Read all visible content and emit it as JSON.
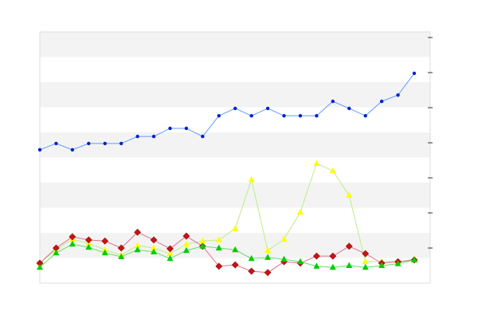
{
  "chart_data": {
    "type": "line",
    "categories": [
      null,
      null,
      null,
      null,
      null,
      null,
      null,
      null,
      null,
      null,
      null,
      null,
      null,
      null,
      null,
      null,
      null,
      null,
      null,
      null,
      null,
      null,
      null,
      null
    ],
    "ylim": [
      0,
      71.6
    ],
    "yticks": [
      10,
      20,
      30,
      40,
      50,
      60,
      70
    ],
    "grid": true,
    "series": [
      {
        "color": "#0022cc",
        "line_color": "#6699ff",
        "marker": "circle",
        "values": [
          38.0,
          39.8,
          38.0,
          39.8,
          39.8,
          39.8,
          41.8,
          41.8,
          44.1,
          44.1,
          41.8,
          47.7,
          49.8,
          47.7,
          49.8,
          47.7,
          47.7,
          47.7,
          51.8,
          49.8,
          47.7,
          51.8,
          53.6,
          59.8
        ]
      },
      {
        "color": "#ffff00",
        "line_color": "#bbee88",
        "marker": "triangle",
        "values": [
          5.7,
          9.5,
          12.5,
          11.4,
          9.5,
          8.0,
          10.7,
          10.0,
          8.4,
          11.1,
          12.0,
          12.3,
          15.5,
          29.5,
          9.3,
          12.5,
          20.2,
          34.1,
          32.0,
          25.0,
          6.1,
          6.1,
          6.1,
          6.8
        ]
      },
      {
        "color": "#cc1111",
        "line_color": "#e07090",
        "marker": "diamond",
        "values": [
          5.7,
          10.0,
          13.2,
          12.3,
          12.0,
          10.0,
          14.5,
          12.3,
          9.8,
          13.4,
          10.5,
          4.8,
          5.2,
          3.4,
          3.0,
          6.1,
          5.7,
          7.7,
          7.7,
          10.5,
          8.4,
          5.7,
          6.1,
          6.6
        ]
      },
      {
        "color": "#00cc00",
        "line_color": "#66dd66",
        "marker": "triangle",
        "values": [
          4.5,
          8.6,
          11.1,
          10.2,
          8.6,
          7.5,
          9.5,
          8.9,
          7.0,
          9.3,
          10.5,
          10.0,
          9.5,
          7.0,
          7.3,
          6.8,
          6.1,
          4.8,
          4.5,
          5.0,
          4.5,
          5.0,
          5.5,
          6.6
        ]
      }
    ]
  }
}
